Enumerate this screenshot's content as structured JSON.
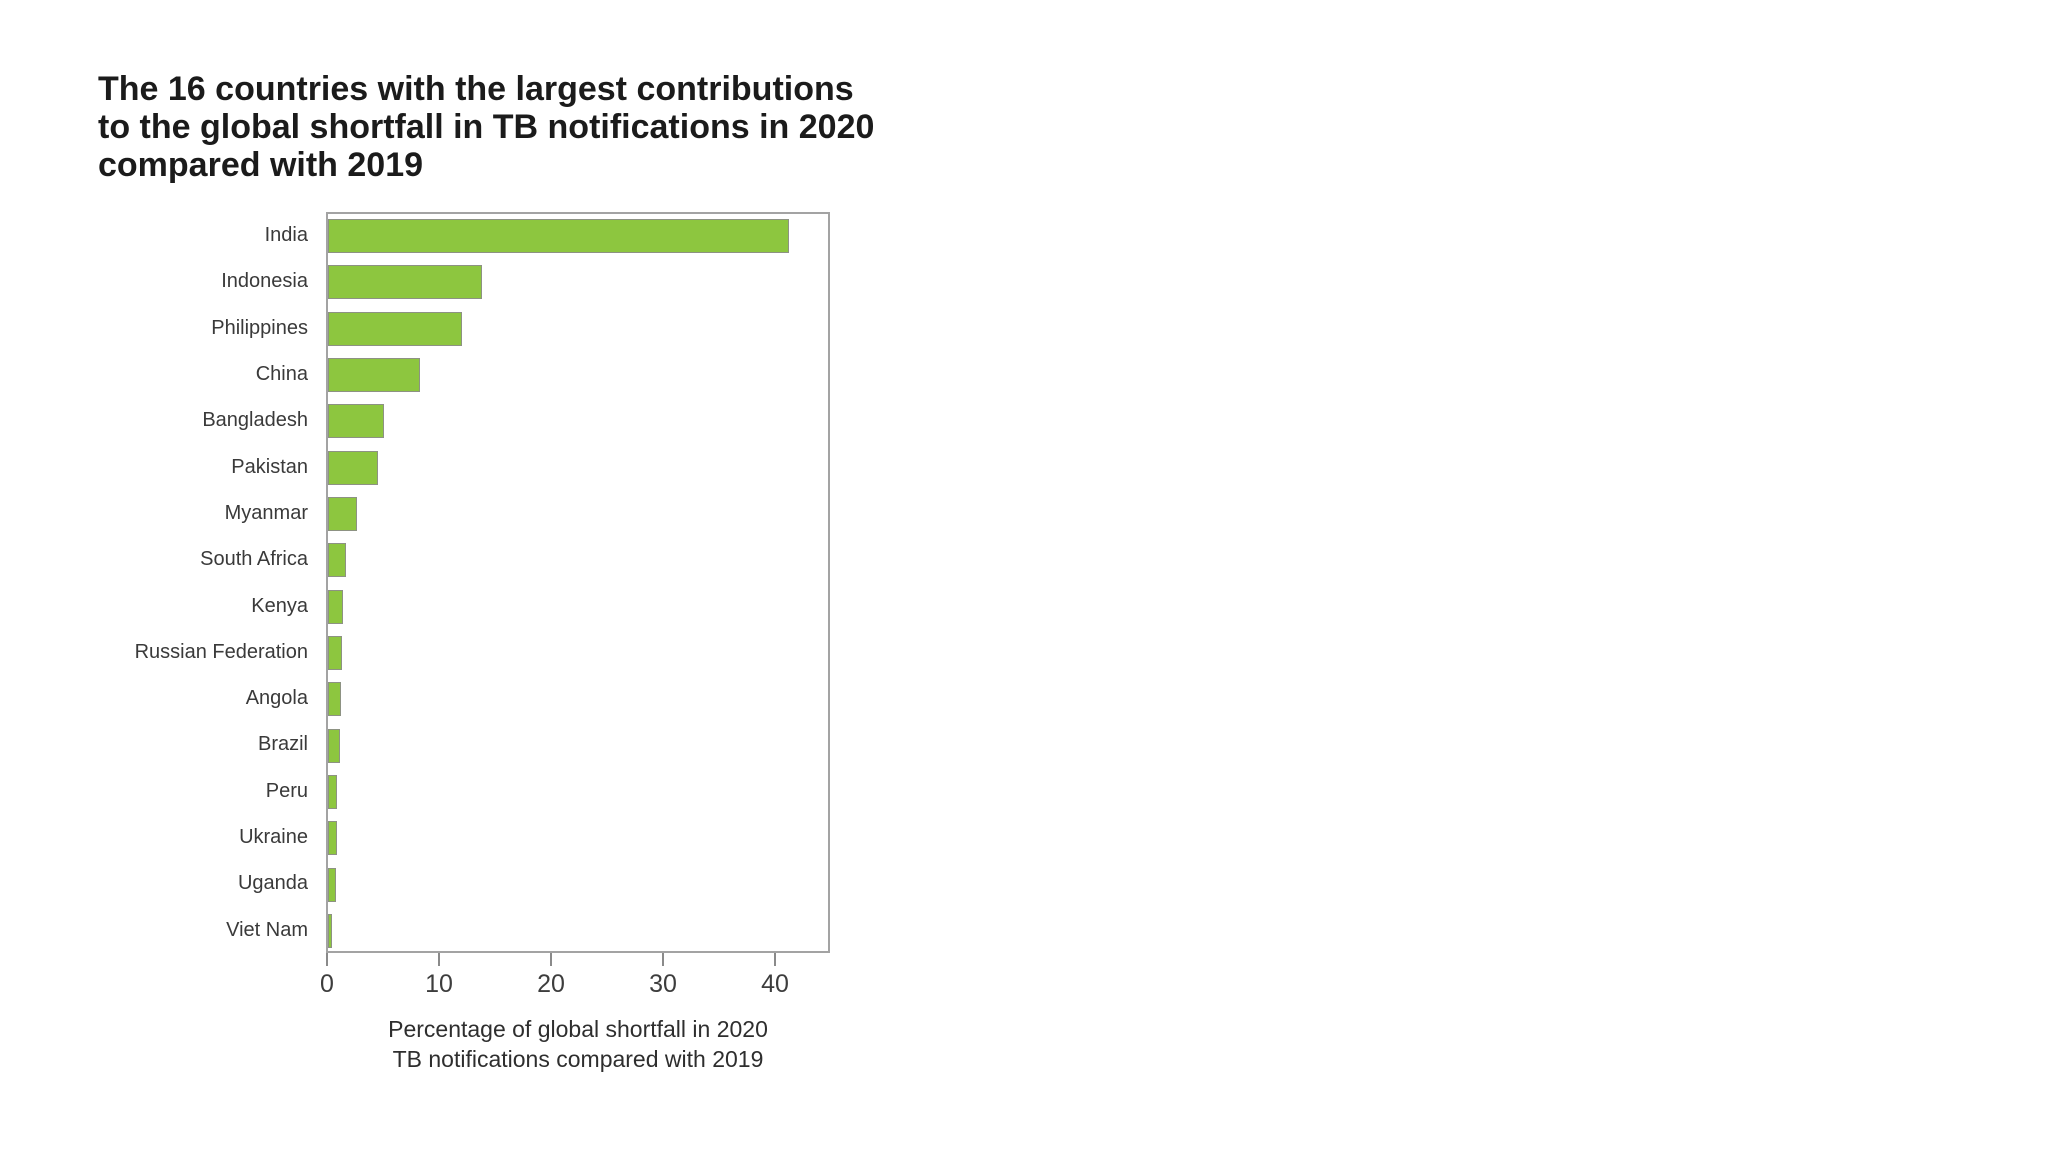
{
  "title": {
    "lines": [
      "The 16 countries with the largest contributions",
      "to the global shortfall in TB notifications in 2020",
      "compared with 2019"
    ]
  },
  "chart_data": {
    "type": "bar",
    "orientation": "horizontal",
    "title": "The 16 countries with the largest contributions to the global shortfall in TB notifications in 2020 compared with 2019",
    "categories": [
      "India",
      "Indonesia",
      "Philippines",
      "China",
      "Bangladesh",
      "Pakistan",
      "Myanmar",
      "South Africa",
      "Kenya",
      "Russian Federation",
      "Angola",
      "Brazil",
      "Peru",
      "Ukraine",
      "Uganda",
      "Viet Nam"
    ],
    "values": [
      41,
      13.6,
      11.8,
      8,
      4.8,
      4.3,
      2.4,
      1.4,
      1.2,
      1.1,
      1.0,
      0.9,
      0.65,
      0.6,
      0.5,
      0.2
    ],
    "xlabel_lines": [
      "Percentage of global shortfall in 2020",
      "TB notifications compared with 2019"
    ],
    "xlabel": "Percentage of global shortfall in 2020 TB notifications compared with 2019",
    "ylabel": "",
    "xlim": [
      0,
      45
    ],
    "xticks": [
      0,
      10,
      20,
      30,
      40
    ],
    "grid": false,
    "legend": "none",
    "bar_color": "#8dc63f",
    "bar_edge_color": "#8d9283",
    "plot_border_color": "#a3a3a3",
    "title_color": "#1b1b1b",
    "label_color": "#3a3a3a"
  }
}
